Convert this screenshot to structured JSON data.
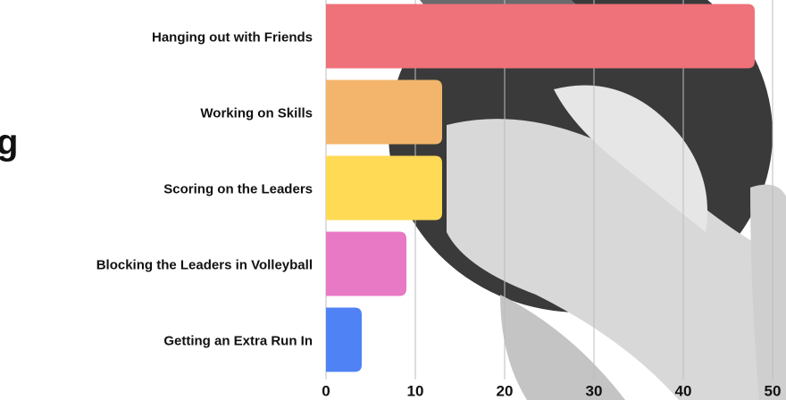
{
  "chart_data": {
    "type": "bar",
    "orientation": "horizontal",
    "heading": "g",
    "categories": [
      "Hanging out with Friends",
      "Working on Skills",
      "Scoring on the Leaders",
      "Blocking the Leaders in Volleyball",
      "Getting an Extra Run In"
    ],
    "values": [
      48,
      13,
      13,
      9,
      4
    ],
    "colors": [
      "#ef717a",
      "#f2b56b",
      "#ffda55",
      "#e879c4",
      "#4f82f5"
    ],
    "xlim": [
      0,
      50
    ],
    "xticks": [
      0,
      10,
      20,
      30,
      40,
      50
    ],
    "grid": true
  }
}
